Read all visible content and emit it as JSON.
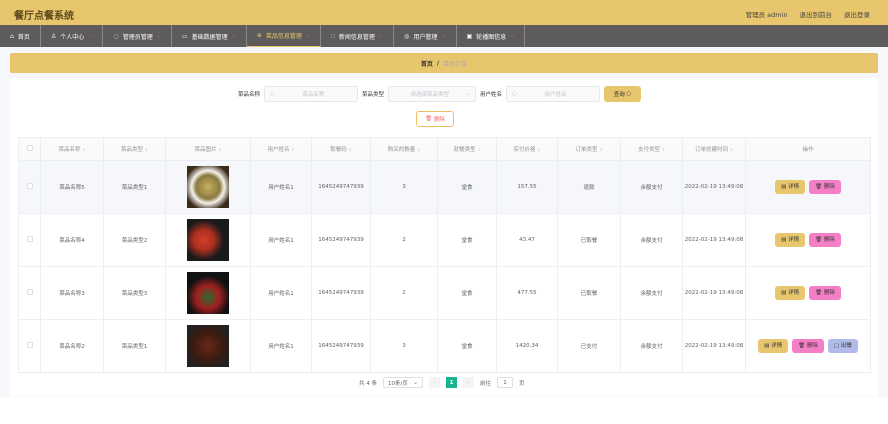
{
  "header": {
    "title": "餐厅点餐系统",
    "user": "管理员 admin",
    "to_front": "退出到前台",
    "logout": "退出登录"
  },
  "nav": [
    {
      "label": "首页",
      "icon": "home-icon"
    },
    {
      "label": "个人中心",
      "icon": "user-icon"
    },
    {
      "label": "管理员管理",
      "icon": "admin-icon"
    },
    {
      "label": "基础数据管理",
      "icon": "monitor-icon"
    },
    {
      "label": "菜品信息管理",
      "icon": "dish-icon",
      "active": true
    },
    {
      "label": "新闻信息管理",
      "icon": "grid-icon"
    },
    {
      "label": "用户管理",
      "icon": "users-icon"
    },
    {
      "label": "轮播图信息",
      "icon": "image-icon"
    }
  ],
  "breadcrumb": {
    "home": "首页",
    "sep": "/",
    "current": "菜品订单"
  },
  "search": {
    "name_label": "菜品名称",
    "name_placeholder": "菜品名称",
    "type_label": "菜品类型",
    "type_placeholder": "请选择菜品类型",
    "user_label": "用户姓名",
    "user_placeholder": "用户姓名",
    "query": "查询"
  },
  "delete_label": "删除",
  "columns": [
    "菜品名称",
    "菜品类型",
    "菜品图片",
    "用户姓名",
    "取餐码",
    "购买的数量",
    "就餐类型",
    "实付价格",
    "订单类型",
    "支付类型",
    "订单创建时间",
    "操作"
  ],
  "rows": [
    {
      "name": "菜品名称5",
      "type": "菜品类型1",
      "user": "用户姓名1",
      "code": "1645249747939",
      "qty": "3",
      "dine": "堂食",
      "price": "157.55",
      "order": "退款",
      "pay": "余额支付",
      "time": "2022-02-19 13:49:08",
      "actions": [
        "详情",
        "删除"
      ]
    },
    {
      "name": "菜品名称4",
      "type": "菜品类型2",
      "user": "用户姓名1",
      "code": "1645249747939",
      "qty": "2",
      "dine": "堂食",
      "price": "43.47",
      "order": "已取餐",
      "pay": "余额支付",
      "time": "2022-02-19 13:49:08",
      "actions": [
        "详情",
        "删除"
      ]
    },
    {
      "name": "菜品名称3",
      "type": "菜品类型3",
      "user": "用户姓名1",
      "code": "1645249747939",
      "qty": "2",
      "dine": "堂食",
      "price": "477.55",
      "order": "已取餐",
      "pay": "余额支付",
      "time": "2022-02-19 13:49:08",
      "actions": [
        "详情",
        "删除"
      ]
    },
    {
      "name": "菜品名称2",
      "type": "菜品类型1",
      "user": "用户姓名1",
      "code": "1645249747939",
      "qty": "3",
      "dine": "堂食",
      "price": "1420.34",
      "order": "已支付",
      "pay": "余额支付",
      "time": "2022-02-19 13:49:08",
      "actions": [
        "详情",
        "删除",
        "出餐"
      ]
    }
  ],
  "pagination": {
    "total": "共 4 条",
    "page_size": "10条/页",
    "current": "1",
    "goto_label": "前往",
    "goto_value": "1",
    "page_unit": "页"
  },
  "colors": {
    "accent": "#e8c66e",
    "nav": "#5d5c5a",
    "page_active": "#19b394"
  }
}
